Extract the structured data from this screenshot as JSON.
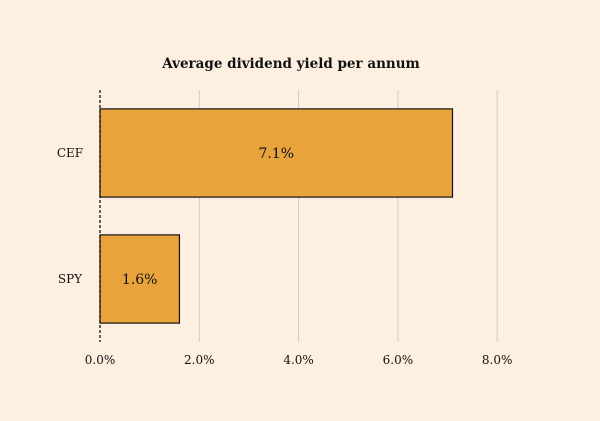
{
  "chart_data": {
    "type": "bar",
    "orientation": "horizontal",
    "title": "Average dividend yield per annum",
    "xlabel": "",
    "ylabel": "",
    "categories": [
      "CEF",
      "SPY"
    ],
    "values": [
      7.1,
      1.6
    ],
    "data_labels": [
      "7.1%",
      "1.6%"
    ],
    "xlim": [
      0,
      8.5
    ],
    "x_ticks": [
      0,
      2,
      4,
      6,
      8
    ],
    "x_tick_labels": [
      "0.0%",
      "2.0%",
      "4.0%",
      "6.0%",
      "8.0%"
    ],
    "grid": "vertical",
    "legend": "none",
    "bar_color": "#e8a33d",
    "edge_color": "#111111",
    "background": "#fdf0e0"
  }
}
